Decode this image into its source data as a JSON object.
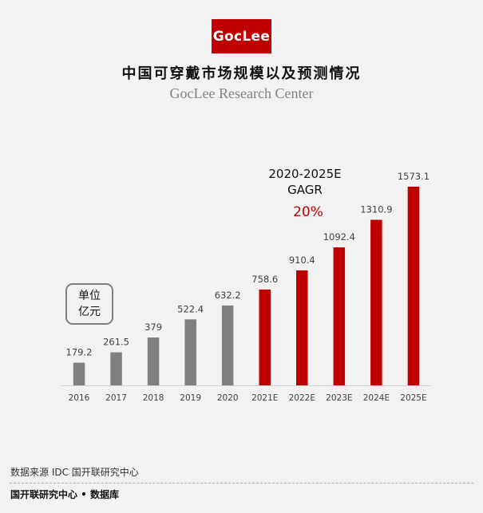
{
  "logo": {
    "text": "GocLee",
    "color": "#c00000"
  },
  "header": {
    "title": "中国可穿戴市场规模以及预测情况",
    "subtitle": "GocLee Research Center"
  },
  "annotation": {
    "gagr_line1": "2020-2025E",
    "gagr_line2": "GAGR",
    "gagr_value": "20%",
    "unit_line1": "单位",
    "unit_line2": "亿元"
  },
  "footer": {
    "source": "数据来源 IDC 国开联研究中心",
    "brand": "国开联研究中心 • 数据库"
  },
  "chart_data": {
    "type": "bar",
    "title": "中国可穿戴市场规模以及预测情况",
    "xlabel": "",
    "ylabel": "亿元",
    "ylim": [
      0,
      1600
    ],
    "grid": false,
    "legend": "none",
    "categories": [
      "2016",
      "2017",
      "2018",
      "2019",
      "2020",
      "2021E",
      "2022E",
      "2023E",
      "2024E",
      "2025E"
    ],
    "values": [
      179.2,
      261.5,
      379,
      522.4,
      632.2,
      758.6,
      910.4,
      1092.4,
      1310.9,
      1573.1
    ],
    "labels": [
      "179.2",
      "261.5",
      "379",
      "522.4",
      "632.2",
      "758.6",
      "910.4",
      "1092.4",
      "1310.9",
      "1573.1"
    ],
    "series_colors": {
      "actual": "#7f7f7f",
      "forecast": "#c00000"
    },
    "forecast_start_index": 5
  }
}
